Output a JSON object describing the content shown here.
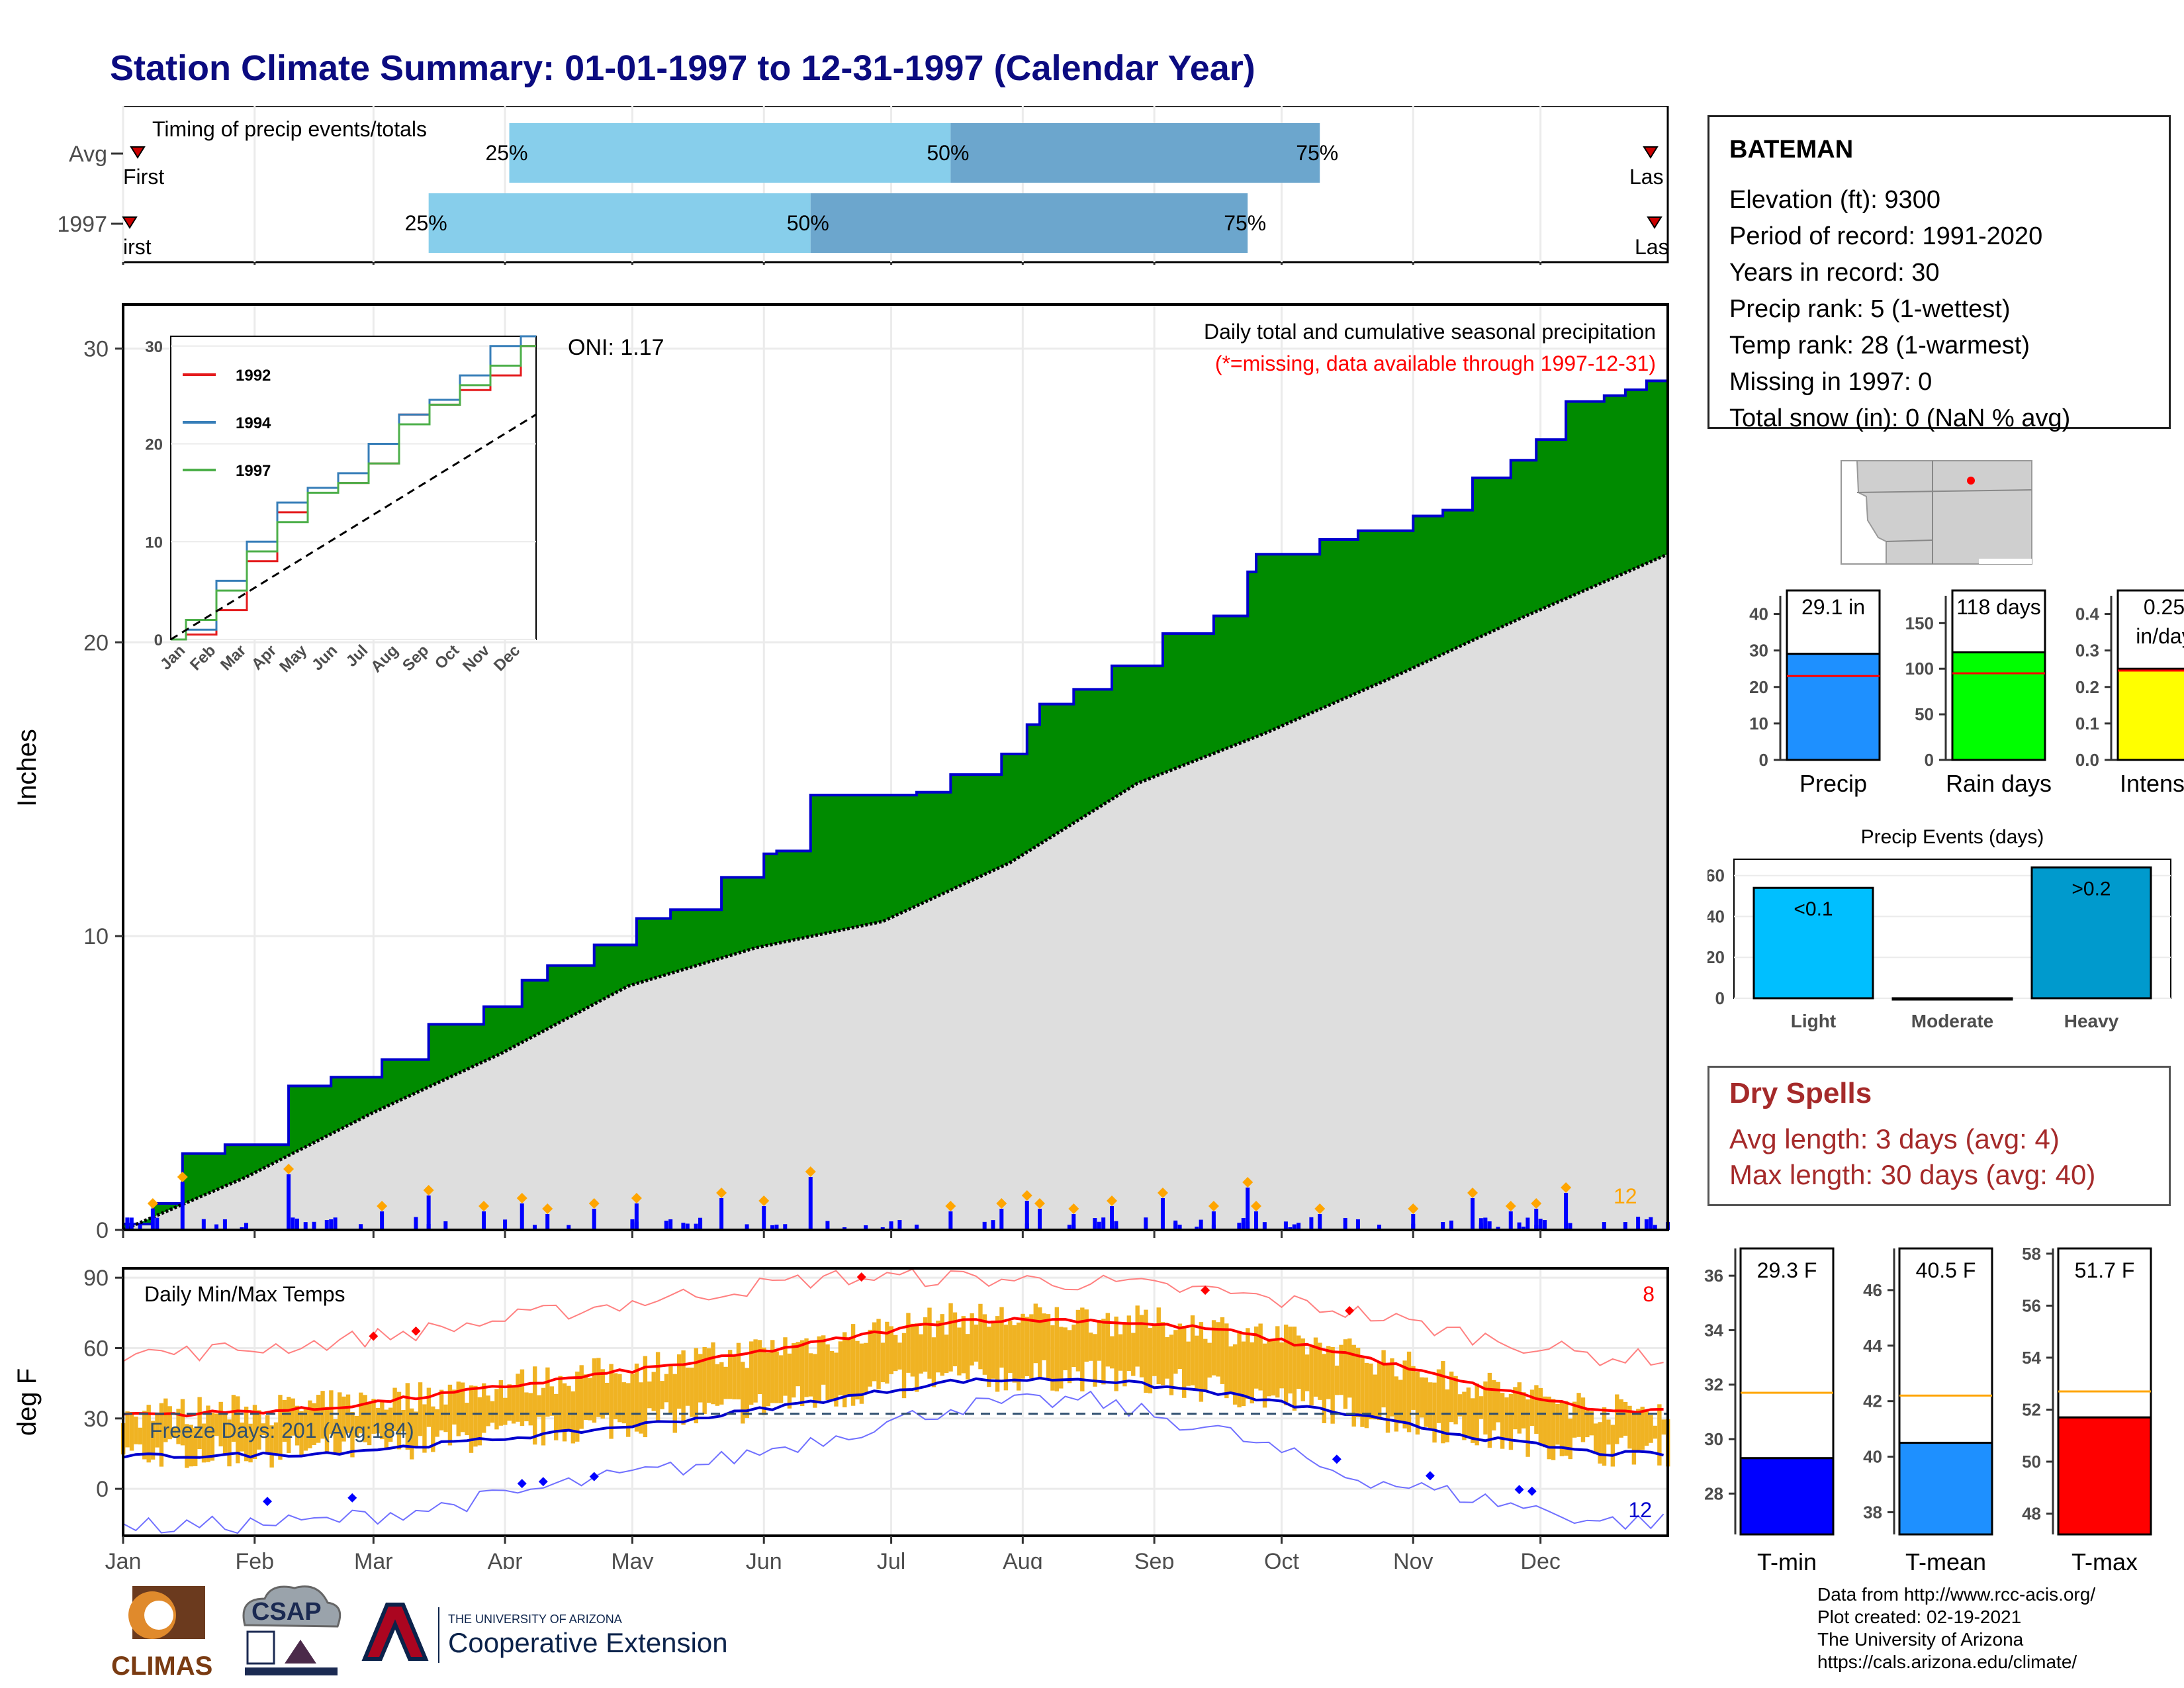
{
  "title": "Station Climate Summary: 01-01-1997 to 12-31-1997 (Calendar Year)",
  "station": {
    "name": "BATEMAN",
    "lines": [
      "Elevation (ft): 9300",
      "Period of record: 1991-2020",
      "Years in record: 30",
      "Precip rank: 5 (1-wettest)",
      "Temp rank: 28 (1-warmest)",
      "Missing in 1997: 0",
      "Total snow (in): 0 (NaN % avg)"
    ]
  },
  "months": [
    "Jan",
    "Feb",
    "Mar",
    "Apr",
    "May",
    "Jun",
    "Jul",
    "Aug",
    "Sep",
    "Oct",
    "Nov",
    "Dec"
  ],
  "timing": {
    "title": "Timing of precip events/totals",
    "rows": [
      {
        "label": "Avg",
        "first_label": "First",
        "last_label": "Las",
        "p25_label": "25%",
        "p50_label": "50%",
        "p75_label": "75%",
        "p25_doy": 92,
        "p50_doy": 196,
        "p75_doy": 283
      },
      {
        "label": "1997",
        "first_label": "irst",
        "last_label": "Las",
        "p25_label": "25%",
        "p50_label": "50%",
        "p75_label": "75%",
        "p25_doy": 73,
        "p50_doy": 163,
        "p75_doy": 266
      }
    ]
  },
  "precip_panel": {
    "ylabel": "Inches",
    "title_line1": "Daily total and cumulative seasonal precipitation",
    "title_line2": "(*=missing, data available through 1997-12-31)",
    "oni": "ONI: 1.17",
    "count_label": "12",
    "yticks": [
      "0",
      "10",
      "20",
      "30"
    ],
    "ymax": 31.5
  },
  "inset": {
    "legend": [
      "1992",
      "1994",
      "1997"
    ],
    "yticks": [
      "0",
      "10",
      "20",
      "30"
    ],
    "months": [
      "Jan",
      "Feb",
      "Mar",
      "Apr",
      "May",
      "Jun",
      "Jul",
      "Aug",
      "Sep",
      "Oct",
      "Nov",
      "Dec"
    ]
  },
  "temp_panel": {
    "ylabel": "deg F",
    "title": "Daily Min/Max Temps",
    "freeze": "Freeze Days: 201 (Avg:184)",
    "max_count": "8",
    "min_count": "12",
    "yticks": [
      "0",
      "30",
      "60",
      "90"
    ]
  },
  "summary_bars": {
    "precip": {
      "label": "Precip",
      "value_label": "29.1 in",
      "value": 29.1,
      "avg": 23,
      "yticks": [
        "0",
        "10",
        "20",
        "30",
        "40"
      ],
      "color": "#1e90ff"
    },
    "rain_days": {
      "label": "Rain days",
      "value_label": "118 days",
      "value": 118,
      "avg": 95,
      "yticks": [
        "0",
        "50",
        "100",
        "150"
      ],
      "color": "#00ff00"
    },
    "intensity": {
      "label": "Intensity",
      "value_label": "0.25",
      "value_label2": "in/day",
      "value": 0.25,
      "avg": 0.245,
      "yticks": [
        "0.0",
        "0.1",
        "0.2",
        "0.3",
        "0.4"
      ],
      "color": "#ffff00"
    }
  },
  "precip_events": {
    "title": "Precip Events (days)",
    "categories": [
      "Light",
      "Moderate",
      "Heavy"
    ],
    "values": [
      54,
      0,
      64
    ],
    "bar_labels": [
      "<0.1",
      "",
      ">0.2"
    ],
    "yticks": [
      "0",
      "20",
      "40",
      "60"
    ]
  },
  "dry_spells": {
    "title": "Dry Spells",
    "avg": "Avg length: 3 days (avg: 4)",
    "max": "Max length: 30 days (avg: 40)"
  },
  "temp_bars": [
    {
      "label": "T-min",
      "value_label": "29.3 F",
      "value": 29.3,
      "avg": 31.7,
      "yticks": [
        "28",
        "30",
        "32",
        "34",
        "36"
      ],
      "color": "#0000ff"
    },
    {
      "label": "T-mean",
      "value_label": "40.5 F",
      "value": 40.5,
      "avg": 42.2,
      "yticks": [
        "38",
        "40",
        "42",
        "44",
        "46"
      ],
      "color": "#1e90ff"
    },
    {
      "label": "T-max",
      "value_label": "51.7 F",
      "value": 51.7,
      "avg": 52.7,
      "yticks": [
        "48",
        "50",
        "52",
        "54",
        "56",
        "58"
      ],
      "color": "#ff0000"
    }
  ],
  "credits": [
    "Data from http://www.rcc-acis.org/",
    "Plot created: 02-19-2021",
    "The University of Arizona",
    "https://cals.arizona.edu/climate/"
  ],
  "logos": {
    "climas": "CLIMAS",
    "csap": "CSAP",
    "ua_small": "THE UNIVERSITY OF ARIZONA",
    "ua_big": "Cooperative Extension"
  },
  "chart_data": [
    {
      "type": "area",
      "title": "Daily total and cumulative seasonal precipitation",
      "ylabel": "Inches",
      "x_unit": "day of year",
      "ylim": [
        0,
        31.5
      ],
      "series": [
        {
          "name": "1997",
          "x": [
            1,
            8,
            15,
            25,
            40,
            50,
            62,
            73,
            86,
            95,
            101,
            112,
            122,
            130,
            142,
            152,
            155,
            163,
            171,
            180,
            188,
            196,
            208,
            214,
            217,
            225,
            234,
            246,
            258,
            266,
            268,
            276,
            283,
            292,
            305,
            312,
            319,
            328,
            334,
            341,
            350,
            355,
            360,
            365
          ],
          "values": [
            0.2,
            0.9,
            2.6,
            2.9,
            4.9,
            5.2,
            5.8,
            7.0,
            7.6,
            8.5,
            9.0,
            9.7,
            10.6,
            10.9,
            12.0,
            12.8,
            12.9,
            14.8,
            14.8,
            14.8,
            14.9,
            15.5,
            16.2,
            17.2,
            17.9,
            18.4,
            19.2,
            20.3,
            20.9,
            22.4,
            23.0,
            23.0,
            23.5,
            23.8,
            24.3,
            24.5,
            25.6,
            26.2,
            26.9,
            28.2,
            28.4,
            28.6,
            28.9,
            29.1
          ]
        },
        {
          "name": "Avg",
          "x": [
            1,
            30,
            60,
            90,
            120,
            150,
            180,
            210,
            240,
            270,
            300,
            330,
            365
          ],
          "values": [
            0.0,
            1.8,
            4.0,
            6.0,
            8.3,
            9.6,
            10.5,
            12.5,
            15.2,
            16.9,
            18.8,
            20.8,
            23.0
          ]
        }
      ]
    },
    {
      "type": "line",
      "title": "",
      "x_unit": "month",
      "categories": [
        "Jan",
        "Feb",
        "Mar",
        "Apr",
        "May",
        "Jun",
        "Jul",
        "Aug",
        "Sep",
        "Oct",
        "Nov",
        "Dec"
      ],
      "ylim": [
        0,
        31
      ],
      "series": [
        {
          "name": "1992",
          "values": [
            0.5,
            3,
            8,
            13,
            15.5,
            16,
            18,
            23,
            24,
            25.5,
            27,
            30
          ]
        },
        {
          "name": "1994",
          "values": [
            1,
            6,
            10,
            14,
            15.5,
            17,
            20,
            23,
            24.5,
            27,
            30,
            31
          ]
        },
        {
          "name": "1997",
          "values": [
            2,
            5,
            9,
            12,
            15,
            16,
            18,
            22,
            24,
            26,
            28,
            30
          ]
        }
      ]
    },
    {
      "type": "line",
      "title": "Daily Min/Max Temps",
      "ylabel": "deg F",
      "x_unit": "month",
      "categories": [
        "Jan",
        "Feb",
        "Mar",
        "Apr",
        "May",
        "Jun",
        "Jul",
        "Aug",
        "Sep",
        "Oct",
        "Nov",
        "Dec"
      ],
      "ylim": [
        -20,
        92
      ],
      "series": [
        {
          "name": "avg max",
          "values": [
            32,
            34,
            40,
            47,
            54,
            63,
            72,
            72,
            68,
            58,
            44,
            33
          ]
        },
        {
          "name": "avg min",
          "values": [
            14,
            15,
            19,
            24,
            30,
            38,
            46,
            47,
            41,
            32,
            22,
            15
          ]
        },
        {
          "name": "record high",
          "values": [
            58,
            62,
            68,
            76,
            83,
            90,
            90,
            88,
            84,
            76,
            65,
            56
          ]
        },
        {
          "name": "record low",
          "values": [
            -16,
            -14,
            -8,
            2,
            10,
            22,
            35,
            38,
            25,
            6,
            -4,
            -14
          ]
        }
      ]
    },
    {
      "type": "bar",
      "title": "Precip Events (days)",
      "categories": [
        "Light",
        "Moderate",
        "Heavy"
      ],
      "values": [
        54,
        0,
        64
      ],
      "ylim": [
        0,
        68
      ]
    },
    {
      "type": "bar",
      "categories": [
        "Precip",
        "Rain days",
        "Intensity"
      ],
      "values": [
        29.1,
        118,
        0.25
      ]
    },
    {
      "type": "bar",
      "categories": [
        "T-min",
        "T-mean",
        "T-max"
      ],
      "values": [
        29.3,
        40.5,
        51.7
      ]
    }
  ]
}
